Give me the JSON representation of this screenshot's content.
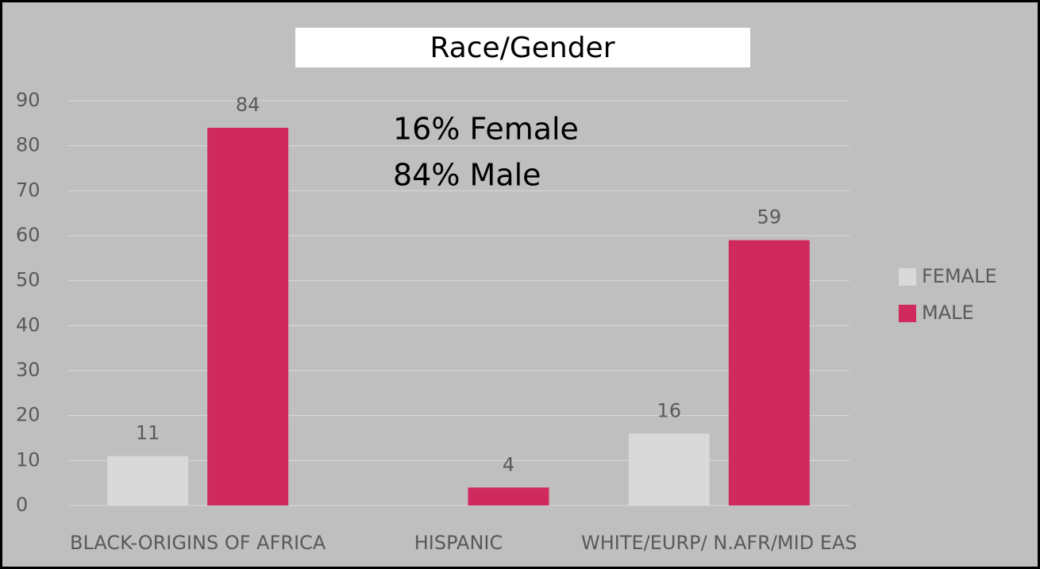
{
  "chart_data": {
    "type": "bar",
    "title": "Race/Gender",
    "categories": [
      "BLACK-ORIGINS OF AFRICA",
      "HISPANIC",
      "WHITE/EURP/ N.AFR/MID EAS"
    ],
    "series": [
      {
        "name": "FEMALE",
        "color": "#d9d9d9",
        "values": [
          11,
          null,
          16
        ]
      },
      {
        "name": "MALE",
        "color": "#d0295e",
        "values": [
          84,
          4,
          59
        ]
      }
    ],
    "annotations": [
      "16% Female",
      "84% Male"
    ],
    "ylim": [
      0,
      90
    ],
    "yticks": [
      0,
      10,
      20,
      30,
      40,
      50,
      60,
      70,
      80,
      90
    ],
    "grid": true,
    "legend": "right"
  }
}
